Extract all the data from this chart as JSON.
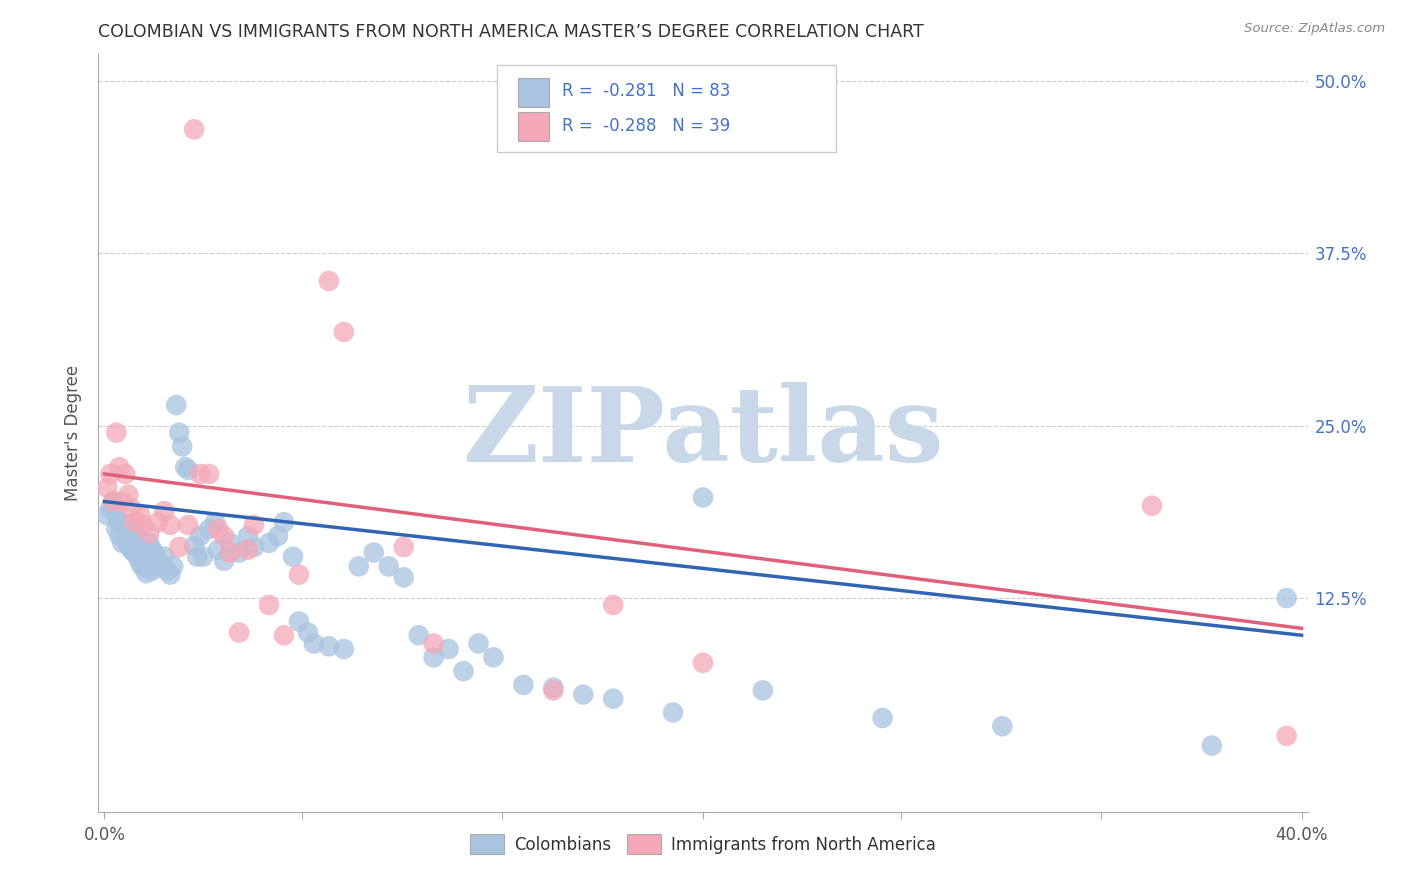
{
  "title": "COLOMBIAN VS IMMIGRANTS FROM NORTH AMERICA MASTER’S DEGREE CORRELATION CHART",
  "source": "Source: ZipAtlas.com",
  "ylabel": "Master's Degree",
  "xlim": [
    -0.002,
    0.402
  ],
  "ylim": [
    -0.03,
    0.52
  ],
  "xticks": [
    0.0,
    0.066,
    0.133,
    0.2,
    0.266,
    0.333,
    0.4
  ],
  "xtick_labels": [
    "0.0%",
    "",
    "",
    "",
    "",
    "",
    "40.0%"
  ],
  "yticks": [
    0.125,
    0.25,
    0.375,
    0.5
  ],
  "ytick_labels": [
    "12.5%",
    "25.0%",
    "37.5%",
    "50.0%"
  ],
  "series1_color": "#a8c4e0",
  "series2_color": "#f4a8b8",
  "line1_color": "#3264b4",
  "line2_color": "#e0607a",
  "R1": -0.281,
  "N1": 83,
  "R2": -0.288,
  "N2": 39,
  "background_color": "#ffffff",
  "watermark": "ZIPatlas",
  "watermark_color": "#c8d8e8",
  "legend1_label": "Colombians",
  "legend2_label": "Immigrants from North America",
  "line1_x0": 0.0,
  "line1_y0": 0.195,
  "line1_x1": 0.4,
  "line1_y1": 0.098,
  "line2_x0": 0.0,
  "line2_y0": 0.215,
  "line2_x1": 0.4,
  "line2_y1": 0.103,
  "colombians_x": [
    0.001,
    0.002,
    0.003,
    0.004,
    0.004,
    0.005,
    0.005,
    0.006,
    0.006,
    0.007,
    0.007,
    0.008,
    0.008,
    0.009,
    0.009,
    0.01,
    0.01,
    0.011,
    0.011,
    0.012,
    0.012,
    0.013,
    0.013,
    0.014,
    0.014,
    0.015,
    0.015,
    0.016,
    0.016,
    0.017,
    0.018,
    0.019,
    0.02,
    0.021,
    0.022,
    0.023,
    0.024,
    0.025,
    0.026,
    0.027,
    0.028,
    0.03,
    0.031,
    0.032,
    0.033,
    0.035,
    0.037,
    0.038,
    0.04,
    0.042,
    0.045,
    0.048,
    0.05,
    0.055,
    0.058,
    0.06,
    0.063,
    0.065,
    0.068,
    0.07,
    0.075,
    0.08,
    0.085,
    0.09,
    0.095,
    0.1,
    0.105,
    0.11,
    0.115,
    0.12,
    0.125,
    0.13,
    0.14,
    0.15,
    0.16,
    0.17,
    0.19,
    0.2,
    0.22,
    0.26,
    0.3,
    0.37,
    0.395
  ],
  "colombians_y": [
    0.185,
    0.19,
    0.195,
    0.185,
    0.175,
    0.18,
    0.17,
    0.178,
    0.165,
    0.175,
    0.168,
    0.172,
    0.163,
    0.17,
    0.16,
    0.175,
    0.158,
    0.168,
    0.155,
    0.162,
    0.15,
    0.158,
    0.147,
    0.155,
    0.143,
    0.165,
    0.15,
    0.16,
    0.145,
    0.157,
    0.152,
    0.148,
    0.155,
    0.145,
    0.142,
    0.148,
    0.265,
    0.245,
    0.235,
    0.22,
    0.218,
    0.163,
    0.155,
    0.17,
    0.155,
    0.175,
    0.18,
    0.16,
    0.152,
    0.165,
    0.158,
    0.17,
    0.162,
    0.165,
    0.17,
    0.18,
    0.155,
    0.108,
    0.1,
    0.092,
    0.09,
    0.088,
    0.148,
    0.158,
    0.148,
    0.14,
    0.098,
    0.082,
    0.088,
    0.072,
    0.092,
    0.082,
    0.062,
    0.06,
    0.055,
    0.052,
    0.042,
    0.198,
    0.058,
    0.038,
    0.032,
    0.018,
    0.125
  ],
  "immigrants_x": [
    0.001,
    0.002,
    0.003,
    0.004,
    0.005,
    0.006,
    0.007,
    0.008,
    0.009,
    0.01,
    0.012,
    0.013,
    0.015,
    0.018,
    0.02,
    0.022,
    0.025,
    0.028,
    0.03,
    0.032,
    0.035,
    0.038,
    0.04,
    0.042,
    0.045,
    0.048,
    0.05,
    0.055,
    0.06,
    0.065,
    0.075,
    0.08,
    0.1,
    0.11,
    0.15,
    0.17,
    0.2,
    0.35,
    0.395
  ],
  "immigrants_y": [
    0.205,
    0.215,
    0.195,
    0.245,
    0.22,
    0.195,
    0.215,
    0.2,
    0.19,
    0.18,
    0.185,
    0.178,
    0.172,
    0.18,
    0.188,
    0.178,
    0.162,
    0.178,
    0.465,
    0.215,
    0.215,
    0.175,
    0.17,
    0.158,
    0.1,
    0.16,
    0.178,
    0.12,
    0.098,
    0.142,
    0.355,
    0.318,
    0.162,
    0.092,
    0.058,
    0.12,
    0.078,
    0.192,
    0.025
  ]
}
